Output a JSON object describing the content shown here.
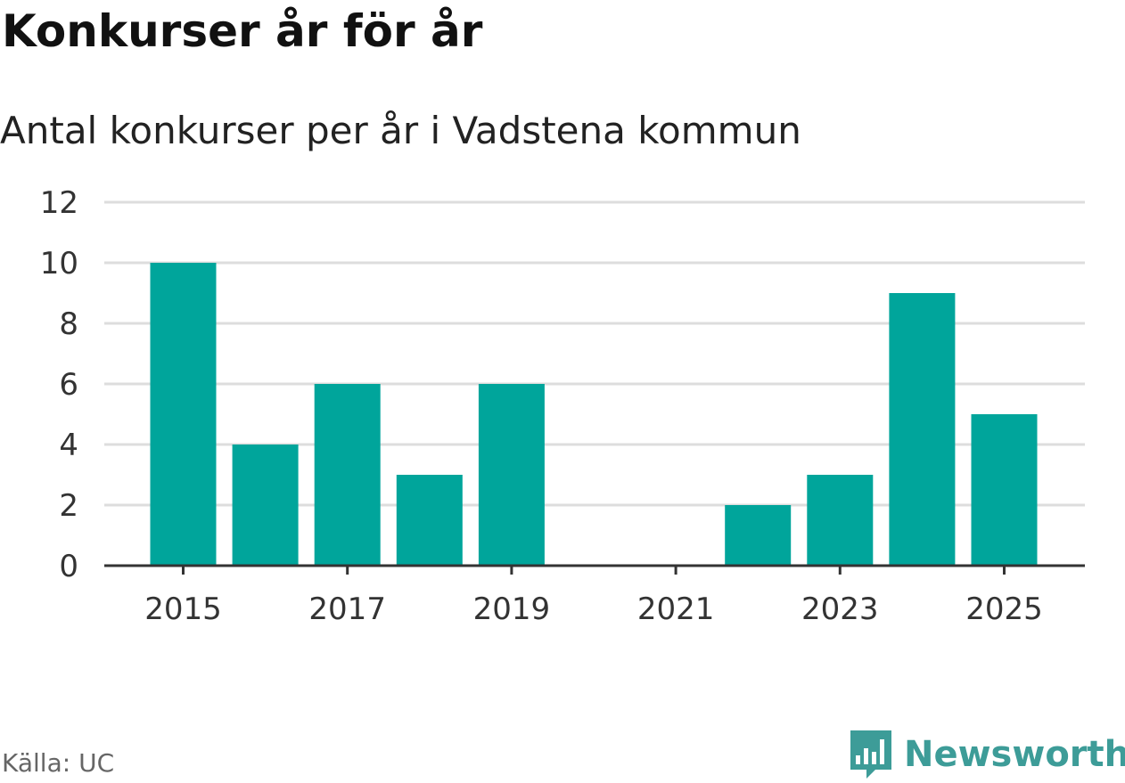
{
  "header": {
    "title": "Konkurser år för år",
    "subtitle": "Antal konkurser per år i Vadstena kommun"
  },
  "footer": {
    "source": "Källa: UC",
    "brand": "Newsworthy",
    "brand_icon": "bar-chart-bubble-icon"
  },
  "colors": {
    "bar": "#00a59b",
    "grid": "#dddddd",
    "axis": "#333333",
    "brand": "#3d9c98"
  },
  "chart_data": {
    "type": "bar",
    "title": "Konkurser år för år",
    "subtitle": "Antal konkurser per år i Vadstena kommun",
    "categories": [
      "2015",
      "2016",
      "2017",
      "2018",
      "2019",
      "2020",
      "2021",
      "2022",
      "2023",
      "2024",
      "2025"
    ],
    "values": [
      10,
      4,
      6,
      3,
      6,
      0,
      0,
      2,
      3,
      9,
      5
    ],
    "x_tick_labels": [
      "2015",
      "2017",
      "2019",
      "2021",
      "2023",
      "2025"
    ],
    "y_ticks": [
      0,
      2,
      4,
      6,
      8,
      10,
      12
    ],
    "ylim": [
      0,
      12
    ],
    "xlabel": "",
    "ylabel": "",
    "grid": true,
    "legend": "none"
  }
}
